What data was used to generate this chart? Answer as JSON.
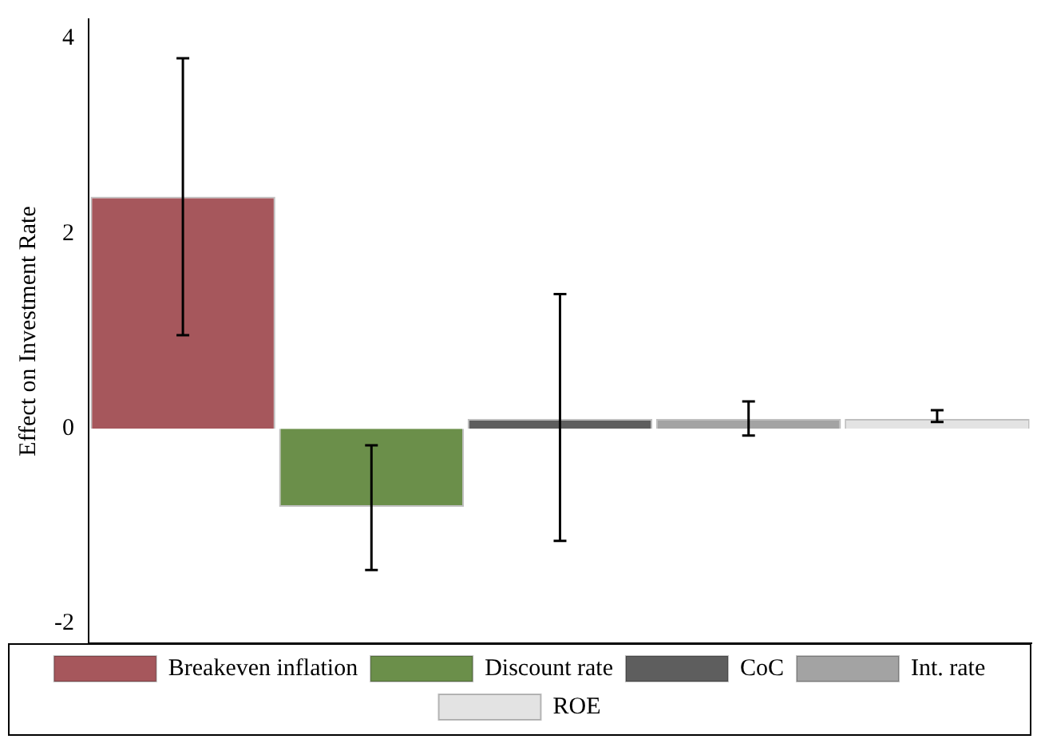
{
  "chart_data": {
    "type": "bar",
    "ylabel": "Effect on Investment Rate",
    "categories": [
      null
    ],
    "series": [
      {
        "name": "Breakeven inflation",
        "color": "#a6575c",
        "values": [
          2.38
        ],
        "errors": [
          [
            0.96,
            3.8
          ]
        ]
      },
      {
        "name": "Discount rate",
        "color": "#6b8f4a",
        "values": [
          -0.8
        ],
        "errors": [
          [
            -1.45,
            -0.17
          ]
        ]
      },
      {
        "name": "CoC",
        "color": "#5e5e5e",
        "values": [
          0.1
        ],
        "errors": [
          [
            -1.15,
            1.38
          ]
        ]
      },
      {
        "name": "Int. rate",
        "color": "#a3a3a3",
        "values": [
          0.1
        ],
        "errors": [
          [
            -0.07,
            0.28
          ]
        ]
      },
      {
        "name": "ROE",
        "color": "#e3e3e3",
        "values": [
          0.1
        ],
        "errors": [
          [
            0.07,
            0.19
          ]
        ]
      }
    ],
    "ylim": [
      -2.2,
      4.2
    ],
    "yticks": [
      -2,
      0,
      2,
      4
    ],
    "grid": false,
    "legend": "bottom"
  }
}
